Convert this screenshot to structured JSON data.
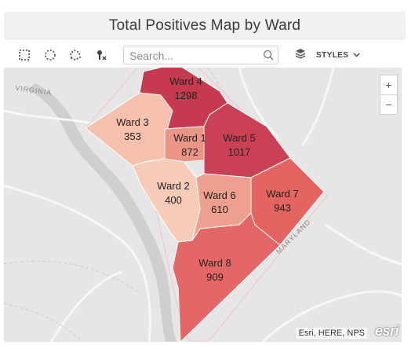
{
  "title": "Total Positives Map by Ward",
  "toolbar": {
    "tools": [
      {
        "icon": "rectangle-select-icon"
      },
      {
        "icon": "circle-select-icon"
      },
      {
        "icon": "lasso-select-icon"
      },
      {
        "icon": "clear-selection-icon"
      }
    ],
    "search_placeholder": "Search...",
    "styles_label": "STYLES"
  },
  "map": {
    "zoom_in": "+",
    "zoom_out": "−",
    "basemap_labels": [
      "VIRGINIA",
      "MARYLAND"
    ],
    "attribution": "Esri, HERE, NPS",
    "logo": "esri",
    "wards": [
      {
        "name": "Ward 4",
        "value": "1298",
        "color": "#c63a4f"
      },
      {
        "name": "Ward 3",
        "value": "353",
        "color": "#f5c0ad"
      },
      {
        "name": "Ward 1",
        "value": "872",
        "color": "#ea9585"
      },
      {
        "name": "Ward 5",
        "value": "1017",
        "color": "#ca4055"
      },
      {
        "name": "Ward 2",
        "value": "400",
        "color": "#f6cbb7"
      },
      {
        "name": "Ward 6",
        "value": "610",
        "color": "#ee9f8f"
      },
      {
        "name": "Ward 7",
        "value": "943",
        "color": "#e46462"
      },
      {
        "name": "Ward 8",
        "value": "909",
        "color": "#e46767"
      }
    ]
  }
}
